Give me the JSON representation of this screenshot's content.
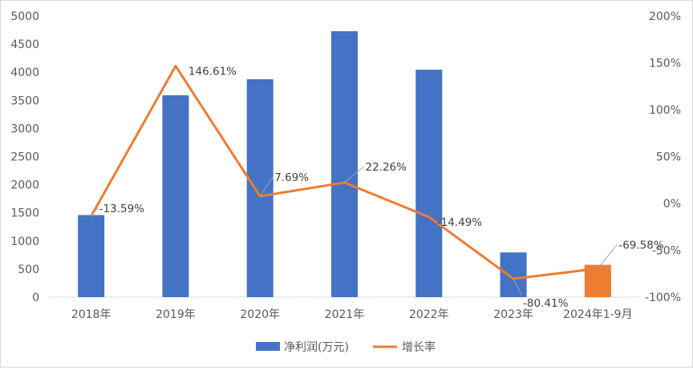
{
  "chart_data": {
    "type": "bar",
    "categories": [
      "2018年",
      "2019年",
      "2020年",
      "2021年",
      "2022年",
      "2023年",
      "2024年1-9月"
    ],
    "series": [
      {
        "name": "净利润(万元)",
        "kind": "bar",
        "axis": "left",
        "values": [
          1460,
          3590,
          3875,
          4730,
          4045,
          795,
          575
        ],
        "colors": [
          "#4472c4",
          "#4472c4",
          "#4472c4",
          "#4472c4",
          "#4472c4",
          "#4472c4",
          "#ed7d31"
        ]
      },
      {
        "name": "增长率",
        "kind": "line",
        "axis": "right",
        "values": [
          -13.59,
          146.61,
          7.69,
          22.26,
          -14.49,
          -80.41,
          -69.58
        ],
        "labels": [
          "-13.59%",
          "146.61%",
          "7.69%",
          "22.26%",
          "-14.49%",
          "-80.41%",
          "-69.58%"
        ],
        "color": "#ed7d31"
      }
    ],
    "y_left": {
      "range": [
        0,
        5000
      ],
      "ticks": [
        "0",
        "500",
        "1000",
        "1500",
        "2000",
        "2500",
        "3000",
        "3500",
        "4000",
        "4500",
        "5000"
      ]
    },
    "y_right": {
      "range": [
        -100,
        200
      ],
      "ticks": [
        "-100%",
        "-50%",
        "0%",
        "50%",
        "100%",
        "150%",
        "200%"
      ]
    },
    "grid": false,
    "legend": "bottom"
  }
}
